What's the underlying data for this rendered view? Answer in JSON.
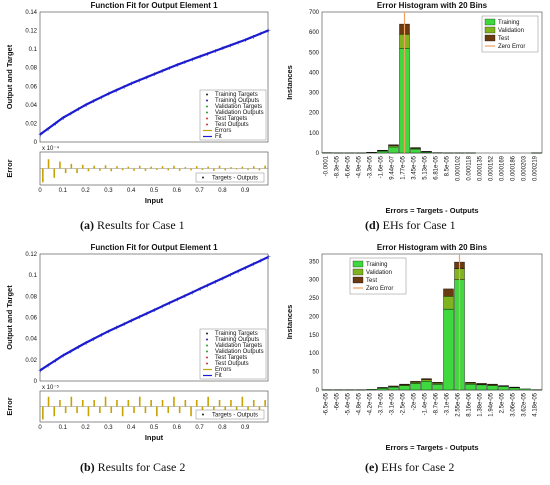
{
  "captions": [
    {
      "tag": "(a)",
      "text": "Results for Case 1"
    },
    {
      "tag": "(d)",
      "text": "EHs for Case 1"
    },
    {
      "tag": "(b)",
      "text": "Results for Case 2"
    },
    {
      "tag": "(e)",
      "text": "EHs for Case 2"
    }
  ],
  "colors": {
    "fit": "#1b1bd6",
    "errors": "#c8a200",
    "training": "#3fd83f",
    "validation": "#7fb41f",
    "test": "#6a3a10",
    "zero_error": "#f0a060",
    "target_dot": "#222222"
  },
  "chart_data": [
    {
      "id": "fit1",
      "type": "line",
      "title": "Function Fit for Output Element 1",
      "ylabel": "Output and Target",
      "xlabel": "Input",
      "xlim": [
        0,
        1
      ],
      "ylim": [
        0,
        0.14
      ],
      "xticks": [
        "0",
        "0.1",
        "0.2",
        "0.3",
        "0.4",
        "0.5",
        "0.6",
        "0.7",
        "0.8",
        "0.9"
      ],
      "yticks": [
        "0",
        "0.02",
        "0.04",
        "0.06",
        "0.08",
        "0.1",
        "0.12",
        "0.14"
      ],
      "series": [
        {
          "name": "Fit",
          "x": [
            0,
            0.1,
            0.2,
            0.3,
            0.4,
            0.5,
            0.6,
            0.7,
            0.8,
            0.9,
            1.0
          ],
          "y": [
            0.008,
            0.026,
            0.04,
            0.052,
            0.063,
            0.073,
            0.083,
            0.092,
            0.101,
            0.11,
            0.12
          ]
        }
      ],
      "legend": [
        "Training Targets",
        "Training Outputs",
        "Validation Targets",
        "Validation Outputs",
        "Test Targets",
        "Test Outputs",
        "Errors",
        "Fit"
      ],
      "legend_position": "bottom-right",
      "error_panel": {
        "ylabel": "Error",
        "exponent": "x 10⁻⁴",
        "legend": [
          "Targets - Outputs"
        ],
        "values": [
          -3,
          2,
          -2,
          1.5,
          -1,
          1,
          -1,
          0.8,
          -0.6,
          0.6,
          -0.5,
          0.7,
          -0.6,
          0.5,
          -0.4,
          0.4,
          -0.5,
          0.6,
          -0.5,
          0.4,
          -0.3,
          0.5,
          -0.4,
          0.6,
          -0.5,
          0.3,
          -0.4,
          0.5,
          -0.3,
          0.4,
          -0.5,
          0.6,
          -0.4,
          0.3,
          -0.2,
          0.4,
          -0.3,
          0.5,
          -0.4,
          0.6
        ]
      }
    },
    {
      "id": "hist1",
      "type": "bar",
      "title": "Error Histogram with 20 Bins",
      "ylabel": "Instances",
      "xlabel": "Errors = Targets - Outputs",
      "ylim": [
        0,
        700
      ],
      "yticks": [
        "0",
        "100",
        "200",
        "300",
        "400",
        "500",
        "600",
        "700"
      ],
      "categories": [
        "-0.0001",
        "-8.3e-05",
        "-6.6e-05",
        "-4.9e-05",
        "-3.3e-05",
        "-1.6e-05",
        "9.44e-07",
        "1.77e-05",
        "3.45e-05",
        "5.13e-05",
        "6.81e-05",
        "8.5e-05",
        "0.000102",
        "0.000118",
        "0.000135",
        "0.000152",
        "0.000169",
        "0.000186",
        "0.000203",
        "0.000219"
      ],
      "series": [
        {
          "name": "Training",
          "values": [
            2,
            1,
            1,
            1,
            3,
            10,
            30,
            520,
            20,
            6,
            2,
            1,
            1,
            1,
            0,
            0,
            0,
            0,
            0,
            1
          ]
        },
        {
          "name": "Validation",
          "values": [
            0,
            0,
            0,
            0,
            1,
            2,
            6,
            70,
            4,
            1,
            0,
            0,
            0,
            0,
            0,
            0,
            0,
            0,
            0,
            0
          ]
        },
        {
          "name": "Test",
          "values": [
            0,
            0,
            0,
            0,
            0,
            2,
            5,
            50,
            3,
            1,
            0,
            0,
            0,
            0,
            0,
            0,
            0,
            0,
            0,
            0
          ]
        }
      ],
      "legend": [
        "Training",
        "Validation",
        "Test",
        "Zero Error"
      ],
      "zero_error_bin": 7,
      "legend_position": "top-right"
    },
    {
      "id": "fit2",
      "type": "line",
      "title": "Function Fit for Output Element 1",
      "ylabel": "Output and Target",
      "xlabel": "Input",
      "xlim": [
        0,
        1
      ],
      "ylim": [
        0,
        0.12
      ],
      "xticks": [
        "0",
        "0.1",
        "0.2",
        "0.3",
        "0.4",
        "0.5",
        "0.6",
        "0.7",
        "0.8",
        "0.9"
      ],
      "yticks": [
        "0",
        "0.02",
        "0.04",
        "0.06",
        "0.08",
        "0.1",
        "0.12"
      ],
      "series": [
        {
          "name": "Fit",
          "x": [
            0,
            0.1,
            0.2,
            0.3,
            0.4,
            0.5,
            0.6,
            0.7,
            0.8,
            0.9,
            1.0
          ],
          "y": [
            0.01,
            0.024,
            0.036,
            0.047,
            0.057,
            0.067,
            0.077,
            0.087,
            0.097,
            0.107,
            0.117
          ]
        }
      ],
      "legend": [
        "Training Targets",
        "Training Outputs",
        "Validation Targets",
        "Validation Outputs",
        "Test Targets",
        "Test Outputs",
        "Errors",
        "Fit"
      ],
      "legend_position": "bottom-right",
      "error_panel": {
        "ylabel": "Error",
        "exponent": "x 10⁻⁵",
        "legend": [
          "Targets - Outputs"
        ],
        "values": [
          -4,
          3,
          -3,
          2,
          -2,
          3,
          -2,
          2,
          -3,
          2,
          -2,
          3,
          -2,
          2,
          -3,
          2,
          -2,
          3,
          -2,
          2,
          -3,
          2,
          -2,
          3,
          -2,
          2,
          -3,
          2,
          -2,
          3,
          -2,
          2,
          -3,
          2,
          -2,
          3,
          -2,
          2,
          -3,
          2
        ]
      }
    },
    {
      "id": "hist2",
      "type": "bar",
      "title": "Error Histogram with 20 Bins",
      "ylabel": "Instances",
      "xlabel": "Errors = Targets - Outputs",
      "ylim": [
        0,
        370
      ],
      "yticks": [
        "0",
        "50",
        "100",
        "150",
        "200",
        "250",
        "300",
        "350"
      ],
      "categories": [
        "-6.5e-05",
        "-6e-05",
        "-5.4e-05",
        "-4.8e-05",
        "-4.2e-05",
        "-3.7e-05",
        "-3.1e-05",
        "-2.5e-05",
        "-2e-05",
        "-1.4e-05",
        "-8.7e-06",
        "-3.1e-06",
        "2.55e-06",
        "8.16e-06",
        "1.38e-05",
        "1.94e-05",
        "2.5e-05",
        "3.06e-05",
        "3.62e-05",
        "4.18e-05"
      ],
      "series": [
        {
          "name": "Training",
          "values": [
            1,
            1,
            1,
            1,
            2,
            5,
            8,
            12,
            18,
            24,
            16,
            220,
            300,
            16,
            14,
            12,
            10,
            6,
            3,
            1
          ]
        },
        {
          "name": "Validation",
          "values": [
            0,
            0,
            0,
            0,
            0,
            1,
            2,
            2,
            3,
            4,
            3,
            35,
            30,
            3,
            2,
            2,
            1,
            1,
            0,
            0
          ]
        },
        {
          "name": "Test",
          "values": [
            0,
            0,
            0,
            0,
            0,
            1,
            1,
            2,
            3,
            3,
            2,
            20,
            18,
            2,
            2,
            2,
            1,
            1,
            0,
            0
          ]
        }
      ],
      "legend": [
        "Training",
        "Validation",
        "Test",
        "Zero Error"
      ],
      "zero_error_bin": 12,
      "legend_position": "top-left"
    }
  ]
}
